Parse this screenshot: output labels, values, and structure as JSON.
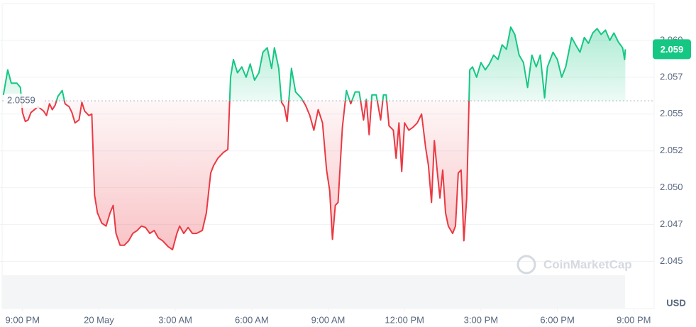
{
  "chart_data": {
    "type": "line",
    "x": [
      -0.75,
      -0.58,
      -0.44,
      -0.22,
      -0.08,
      0,
      0.11,
      0.22,
      0.33,
      0.61,
      0.83,
      0.94,
      1.06,
      1.17,
      1.28,
      1.39,
      1.56,
      1.67,
      1.83,
      1.94,
      2.06,
      2.22,
      2.33,
      2.44,
      2.61,
      2.72,
      2.83,
      2.94,
      3.11,
      3.28,
      3.44,
      3.56,
      3.67,
      3.83,
      4.0,
      4.17,
      4.33,
      4.5,
      4.67,
      4.83,
      5.0,
      5.17,
      5.33,
      5.5,
      5.72,
      5.89,
      6.06,
      6.17,
      6.33,
      6.5,
      6.67,
      6.83,
      7.06,
      7.22,
      7.39,
      7.5,
      7.67,
      7.89,
      8.06,
      8.17,
      8.28,
      8.44,
      8.61,
      8.78,
      8.94,
      9.11,
      9.28,
      9.44,
      9.61,
      9.78,
      9.89,
      10.06,
      10.17,
      10.28,
      10.39,
      10.56,
      10.72,
      10.94,
      11.11,
      11.28,
      11.44,
      11.61,
      11.78,
      11.94,
      12.06,
      12.17,
      12.28,
      12.39,
      12.56,
      12.72,
      12.89,
      13.06,
      13.22,
      13.39,
      13.5,
      13.61,
      13.72,
      13.89,
      14.06,
      14.17,
      14.28,
      14.39,
      14.56,
      14.67,
      14.78,
      14.89,
      15.0,
      15.17,
      15.33,
      15.5,
      15.67,
      15.83,
      15.94,
      16.06,
      16.17,
      16.28,
      16.39,
      16.5,
      16.61,
      16.72,
      16.89,
      17.0,
      17.11,
      17.22,
      17.33,
      17.44,
      17.56,
      17.67,
      17.83,
      18.0,
      18.17,
      18.33,
      18.5,
      18.67,
      18.83,
      19.0,
      19.17,
      19.33,
      19.5,
      19.67,
      19.83,
      20.0,
      20.17,
      20.33,
      20.5,
      20.61,
      20.83,
      21.0,
      21.17,
      21.33,
      21.56,
      21.72,
      21.89,
      22.06,
      22.22,
      22.39,
      22.56,
      22.72,
      22.89,
      23.06,
      23.22,
      23.39,
      23.56,
      23.64,
      23.67
    ],
    "values": [
      2.0563,
      2.058,
      2.0571,
      2.0571,
      2.0568,
      2.0551,
      2.0545,
      2.0546,
      2.0551,
      2.0555,
      2.0552,
      2.0549,
      2.0557,
      2.0553,
      2.0556,
      2.0562,
      2.0566,
      2.0557,
      2.0555,
      2.0551,
      2.0544,
      2.0546,
      2.0558,
      2.0552,
      2.0549,
      2.055,
      2.0495,
      2.0483,
      2.0476,
      2.0474,
      2.0483,
      2.0488,
      2.0469,
      2.0461,
      2.0461,
      2.0464,
      2.0469,
      2.0471,
      2.0474,
      2.0473,
      2.0469,
      2.0471,
      2.0466,
      2.0464,
      2.046,
      2.0458,
      2.0469,
      2.0474,
      2.0469,
      2.0473,
      2.0469,
      2.0469,
      2.0471,
      2.0483,
      2.051,
      2.0515,
      2.052,
      2.0524,
      2.0526,
      2.0575,
      2.0587,
      2.0578,
      2.0582,
      2.0575,
      2.0584,
      2.0573,
      2.0578,
      2.0592,
      2.0595,
      2.0581,
      2.0595,
      2.0581,
      2.0558,
      2.0555,
      2.0545,
      2.0581,
      2.0565,
      2.0561,
      2.0556,
      2.0549,
      2.0539,
      2.0553,
      2.0544,
      2.0512,
      2.0498,
      2.0465,
      2.0488,
      2.049,
      2.0541,
      2.0566,
      2.0557,
      2.0565,
      2.0565,
      2.0546,
      2.056,
      2.0536,
      2.0563,
      2.0563,
      2.0546,
      2.0563,
      2.0563,
      2.0542,
      2.0539,
      2.052,
      2.0544,
      2.0511,
      2.0544,
      2.0539,
      2.0541,
      2.0544,
      2.055,
      2.0527,
      2.0515,
      2.049,
      2.0532,
      2.0512,
      2.0493,
      2.0512,
      2.0483,
      2.0474,
      2.0469,
      2.0474,
      2.051,
      2.0512,
      2.0464,
      2.0493,
      2.058,
      2.0582,
      2.0575,
      2.0585,
      2.058,
      2.0584,
      2.059,
      2.0587,
      2.0597,
      2.0594,
      2.0609,
      2.0604,
      2.059,
      2.0585,
      2.0568,
      2.059,
      2.0582,
      2.059,
      2.0561,
      2.0582,
      2.0592,
      2.0587,
      2.0575,
      2.0582,
      2.0602,
      2.0597,
      2.0592,
      2.0602,
      2.0598,
      2.0605,
      2.0608,
      2.0604,
      2.0607,
      2.06,
      2.0605,
      2.0599,
      2.0595,
      2.0587,
      2.0594
    ],
    "xlim": [
      -0.8,
      24.8
    ],
    "ylim": [
      2.0418,
      2.0625
    ],
    "xticks": [
      {
        "value": 0,
        "label": "9:00 PM"
      },
      {
        "value": 3,
        "label": "20 May"
      },
      {
        "value": 6,
        "label": "3:00 AM"
      },
      {
        "value": 9,
        "label": "6:00 AM"
      },
      {
        "value": 12,
        "label": "9:00 AM"
      },
      {
        "value": 15,
        "label": "12:00 PM"
      },
      {
        "value": 18,
        "label": "3:00 PM"
      },
      {
        "value": 21,
        "label": "6:00 PM"
      },
      {
        "value": 24,
        "label": "9:00 PM"
      }
    ],
    "yticks": [
      2.045,
      {
        "value": 2.0475,
        "label": "2.047"
      },
      {
        "value": 2.05,
        "label": "2.050"
      },
      {
        "value": 2.0525,
        "label": "2.052"
      },
      2.055,
      {
        "value": 2.0575,
        "label": "2.057"
      },
      {
        "value": 2.06,
        "label": "2.060"
      }
    ],
    "grid": true,
    "baseline": 2.0559,
    "up_color": "#16c784",
    "down_color": "#ea3943",
    "last_price_label": "2.059",
    "currency": "USD",
    "watermark": "CoinMarketCap"
  }
}
